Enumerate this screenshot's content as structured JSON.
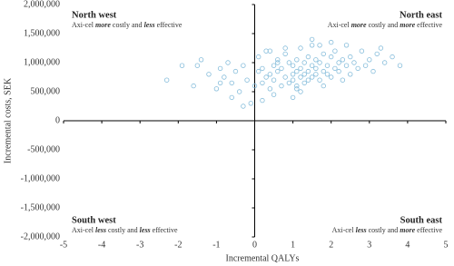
{
  "chart_data": {
    "type": "scatter",
    "x_label": "Incremental QALYs",
    "y_label": "Incremental costs, SEK",
    "quadrants": [
      {
        "title": "North west",
        "text": [
          "Axi-cel ",
          "more",
          " costly and ",
          "less",
          " effective"
        ]
      },
      {
        "title": "North east",
        "text": [
          "Axi-cel ",
          "more",
          " costly and ",
          "more",
          " effective"
        ]
      },
      {
        "title": "South west",
        "text": [
          "Axi-cel ",
          "less",
          " costly and ",
          "less",
          " effective"
        ]
      },
      {
        "title": "South east",
        "text": [
          "Axi-cel ",
          "less",
          " costly and ",
          "more",
          " effective"
        ]
      }
    ],
    "xlim": [
      -5,
      5
    ],
    "xticks": [
      -5,
      -4,
      -3,
      -2,
      -1,
      0,
      1,
      2,
      3,
      4,
      5
    ],
    "ylim": [
      -2000000,
      2000000
    ],
    "yticks": [
      {
        "value": -2000000,
        "label": "-2,000,000"
      },
      {
        "value": -1500000,
        "label": "-1,500,000"
      },
      {
        "value": -1000000,
        "label": "-1,000,000"
      },
      {
        "value": -500000,
        "label": "-500,000"
      },
      0,
      {
        "value": 500000,
        "label": "500,000"
      },
      {
        "value": 1000000,
        "label": "1,000,000"
      },
      {
        "value": 1500000,
        "label": "1,500,000"
      },
      {
        "value": 2000000,
        "label": "2,000,000"
      }
    ],
    "color": "#86bddb",
    "x": [
      -2.3,
      -1.9,
      -1.6,
      -1.4,
      -1.2,
      -1.0,
      -0.9,
      -0.8,
      -0.7,
      -0.6,
      -0.5,
      -0.4,
      -0.3,
      -0.2,
      -0.1,
      0.0,
      0.1,
      0.1,
      0.2,
      0.2,
      0.3,
      0.3,
      0.4,
      0.4,
      0.5,
      0.5,
      0.6,
      0.6,
      0.7,
      0.7,
      0.8,
      0.8,
      0.9,
      0.9,
      1.0,
      1.0,
      1.0,
      1.1,
      1.1,
      1.1,
      1.2,
      1.2,
      1.2,
      1.3,
      1.3,
      1.3,
      1.4,
      1.4,
      1.4,
      1.5,
      1.5,
      1.5,
      1.6,
      1.6,
      1.6,
      1.7,
      1.7,
      1.8,
      1.8,
      1.8,
      1.9,
      1.9,
      2.0,
      2.0,
      2.1,
      2.1,
      2.2,
      2.2,
      2.3,
      2.3,
      2.4,
      2.5,
      2.5,
      2.6,
      2.7,
      2.8,
      2.9,
      3.0,
      3.1,
      3.2,
      3.4,
      3.6,
      3.8,
      -0.3,
      0.5,
      1.0,
      1.5,
      2.0,
      0.8,
      1.2,
      -1.5,
      -0.6,
      0.2,
      2.4,
      3.3,
      0.6,
      1.7,
      -0.9,
      0.4,
      1.1
    ],
    "values": [
      700000,
      950000,
      600000,
      1050000,
      800000,
      550000,
      900000,
      750000,
      1000000,
      650000,
      850000,
      500000,
      950000,
      700000,
      300000,
      600000,
      850000,
      1100000,
      650000,
      900000,
      750000,
      1200000,
      550000,
      800000,
      950000,
      700000,
      850000,
      1050000,
      600000,
      900000,
      750000,
      1150000,
      650000,
      1000000,
      800000,
      950000,
      700000,
      1050000,
      850000,
      600000,
      900000,
      750000,
      1250000,
      800000,
      1000000,
      650000,
      850000,
      1100000,
      700000,
      950000,
      750000,
      1300000,
      800000,
      1050000,
      900000,
      700000,
      1000000,
      850000,
      1150000,
      600000,
      950000,
      800000,
      1100000,
      750000,
      900000,
      1200000,
      850000,
      1000000,
      700000,
      1050000,
      950000,
      1100000,
      800000,
      1000000,
      900000,
      1200000,
      950000,
      1050000,
      850000,
      1150000,
      1000000,
      1100000,
      950000,
      250000,
      450000,
      400000,
      1400000,
      1350000,
      1250000,
      500000,
      950000,
      400000,
      350000,
      1300000,
      1250000,
      1000000,
      1300000,
      650000,
      1200000,
      550000
    ]
  }
}
